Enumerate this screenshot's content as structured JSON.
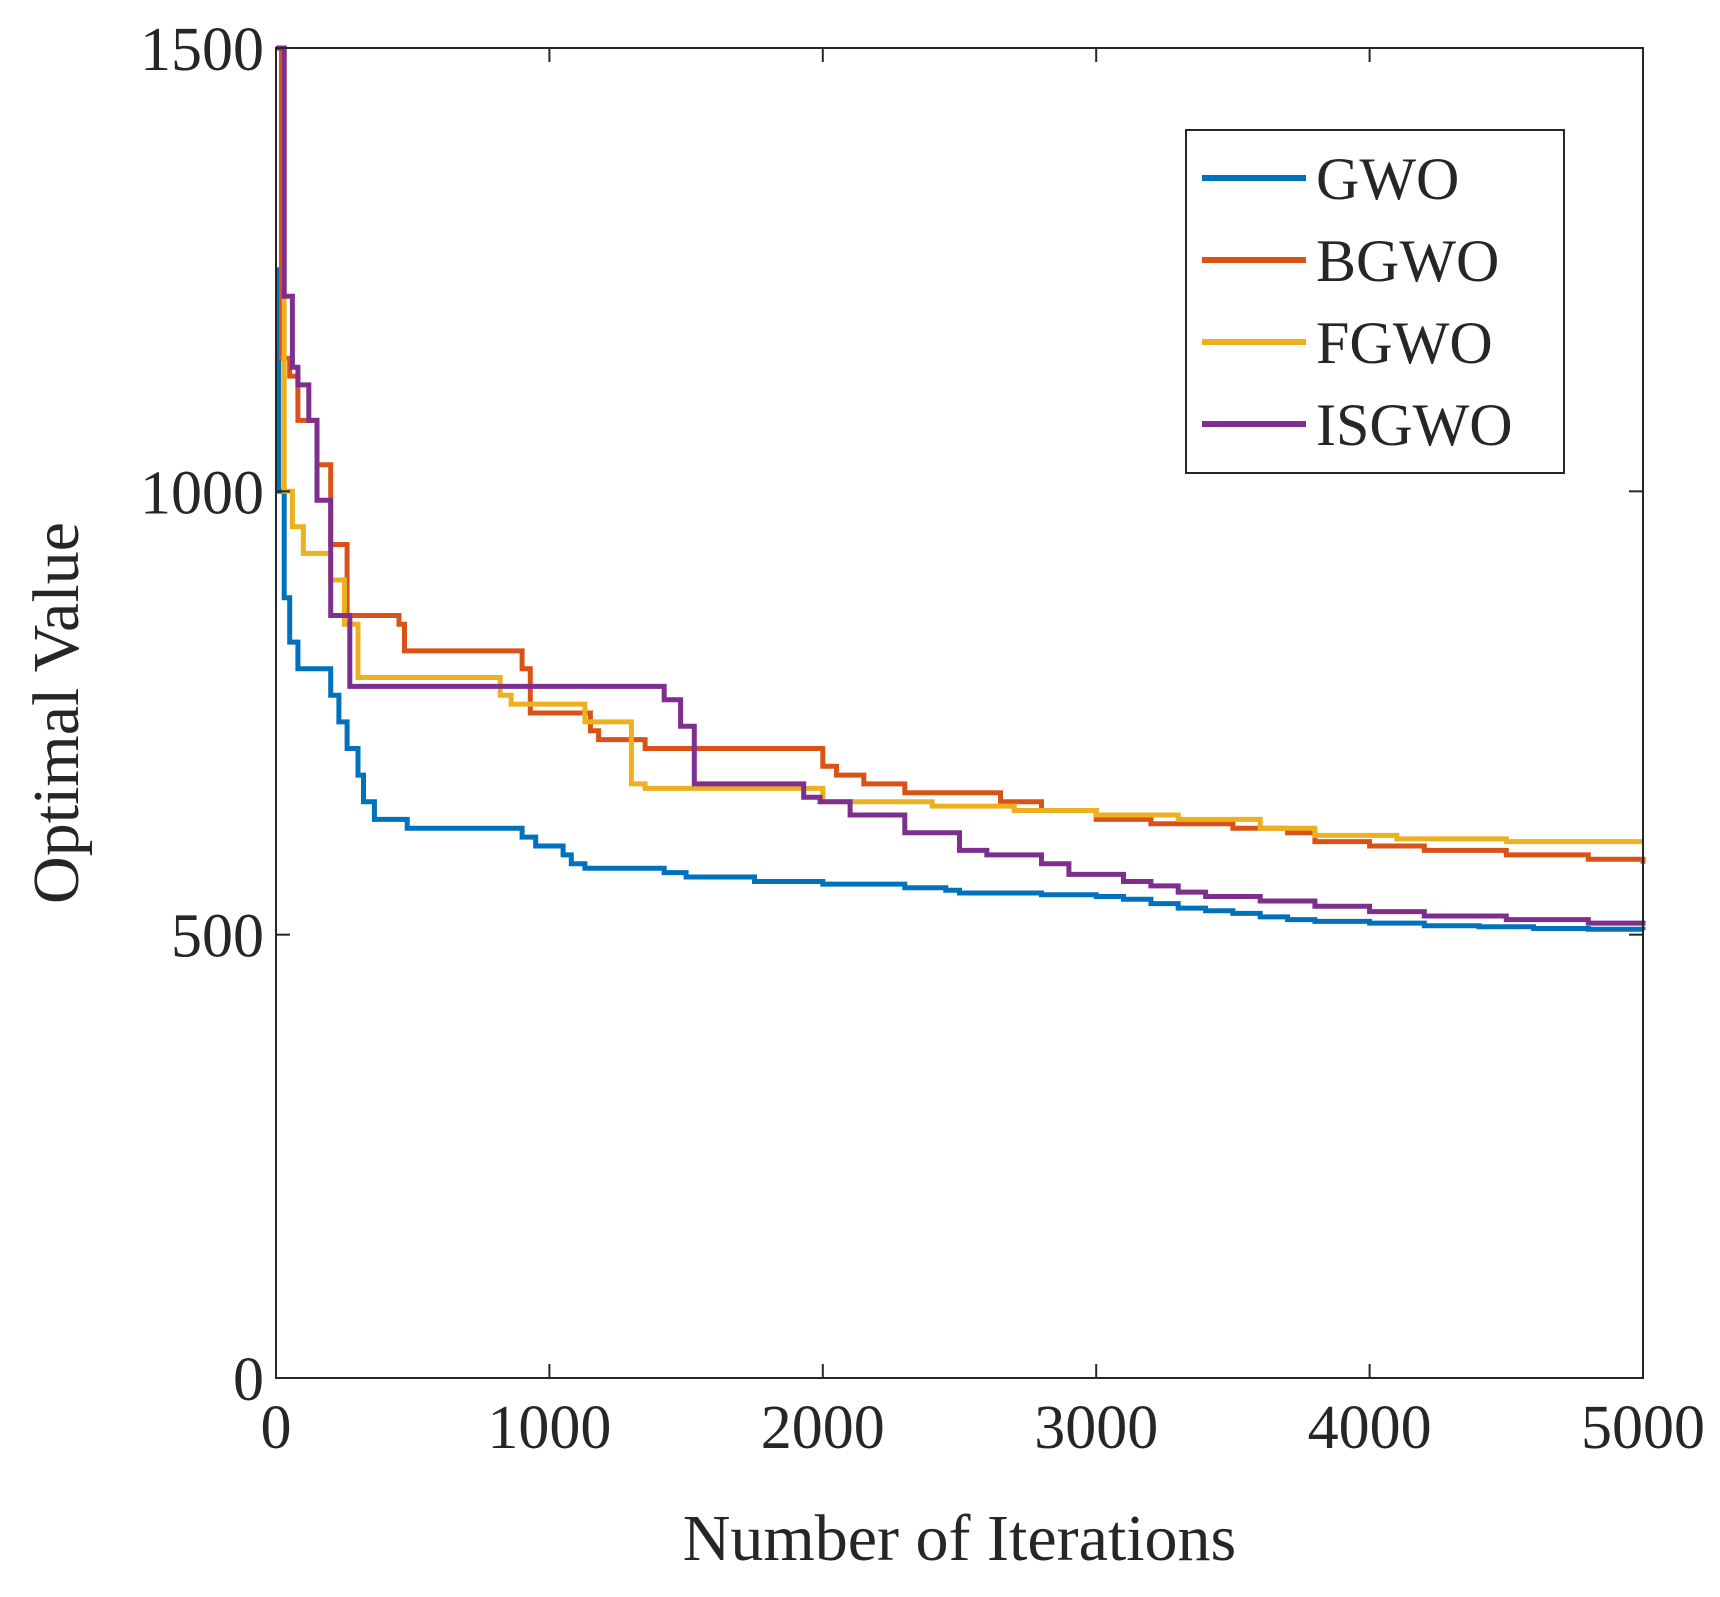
{
  "chart_data": {
    "type": "line",
    "xlabel": "Number of Iterations",
    "ylabel": "Optimal Value",
    "xlim": [
      0,
      5000
    ],
    "ylim": [
      0,
      1500
    ],
    "xticks": [
      0,
      1000,
      2000,
      3000,
      4000,
      5000
    ],
    "yticks": [
      0,
      500,
      1000,
      1500
    ],
    "xtick_labels": [
      "0",
      "1000",
      "2000",
      "3000",
      "4000",
      "5000"
    ],
    "ytick_labels": [
      "0",
      "500",
      "1000",
      "1500"
    ],
    "grid": false,
    "box": true,
    "legend_position": "top-right",
    "step": true,
    "series": [
      {
        "name": "GWO",
        "color": "#0072BD",
        "x": [
          0,
          10,
          30,
          50,
          80,
          200,
          230,
          260,
          300,
          320,
          360,
          480,
          900,
          950,
          1050,
          1080,
          1130,
          1420,
          1500,
          1750,
          2000,
          2300,
          2450,
          2500,
          2800,
          3000,
          3100,
          3200,
          3300,
          3400,
          3500,
          3600,
          3700,
          3800,
          4000,
          4200,
          4400,
          4600,
          4800,
          5000
        ],
        "y": [
          1250,
          1000,
          880,
          830,
          800,
          770,
          740,
          710,
          680,
          650,
          630,
          620,
          610,
          600,
          590,
          580,
          575,
          570,
          565,
          560,
          557,
          553,
          550,
          547,
          545,
          543,
          540,
          535,
          530,
          527,
          524,
          520,
          517,
          515,
          513,
          510,
          509,
          507,
          506,
          505
        ]
      },
      {
        "name": "BGWO",
        "color": "#D95319",
        "x": [
          0,
          20,
          50,
          80,
          150,
          200,
          260,
          450,
          470,
          900,
          930,
          1150,
          1180,
          1350,
          2000,
          2050,
          2150,
          2300,
          2650,
          2800,
          3000,
          3200,
          3500,
          3700,
          3800,
          4000,
          4200,
          4500,
          4800,
          5000
        ],
        "y": [
          1500,
          1150,
          1130,
          1080,
          1030,
          940,
          860,
          850,
          820,
          800,
          750,
          730,
          720,
          710,
          690,
          680,
          670,
          660,
          650,
          640,
          630,
          625,
          620,
          615,
          605,
          600,
          595,
          590,
          585,
          580
        ]
      },
      {
        "name": "FGWO",
        "color": "#EDB120",
        "x": [
          0,
          30,
          60,
          100,
          200,
          250,
          300,
          820,
          860,
          1130,
          1300,
          1350,
          2000,
          2400,
          2700,
          3000,
          3300,
          3600,
          3800,
          4100,
          4500,
          5000
        ],
        "y": [
          1500,
          1000,
          960,
          930,
          900,
          850,
          790,
          770,
          760,
          740,
          670,
          665,
          650,
          645,
          640,
          635,
          630,
          620,
          612,
          608,
          605,
          605
        ]
      },
      {
        "name": "ISGWO",
        "color": "#7E2F8E",
        "x": [
          0,
          30,
          60,
          80,
          120,
          150,
          200,
          270,
          1420,
          1480,
          1530,
          1930,
          1990,
          2100,
          2300,
          2500,
          2600,
          2800,
          2900,
          3100,
          3200,
          3300,
          3400,
          3600,
          3800,
          4000,
          4200,
          4500,
          4800,
          5000
        ],
        "y": [
          1500,
          1220,
          1140,
          1120,
          1080,
          990,
          860,
          780,
          765,
          735,
          670,
          655,
          650,
          635,
          615,
          595,
          590,
          580,
          568,
          560,
          555,
          548,
          543,
          538,
          532,
          526,
          521,
          517,
          513,
          510
        ]
      }
    ]
  }
}
